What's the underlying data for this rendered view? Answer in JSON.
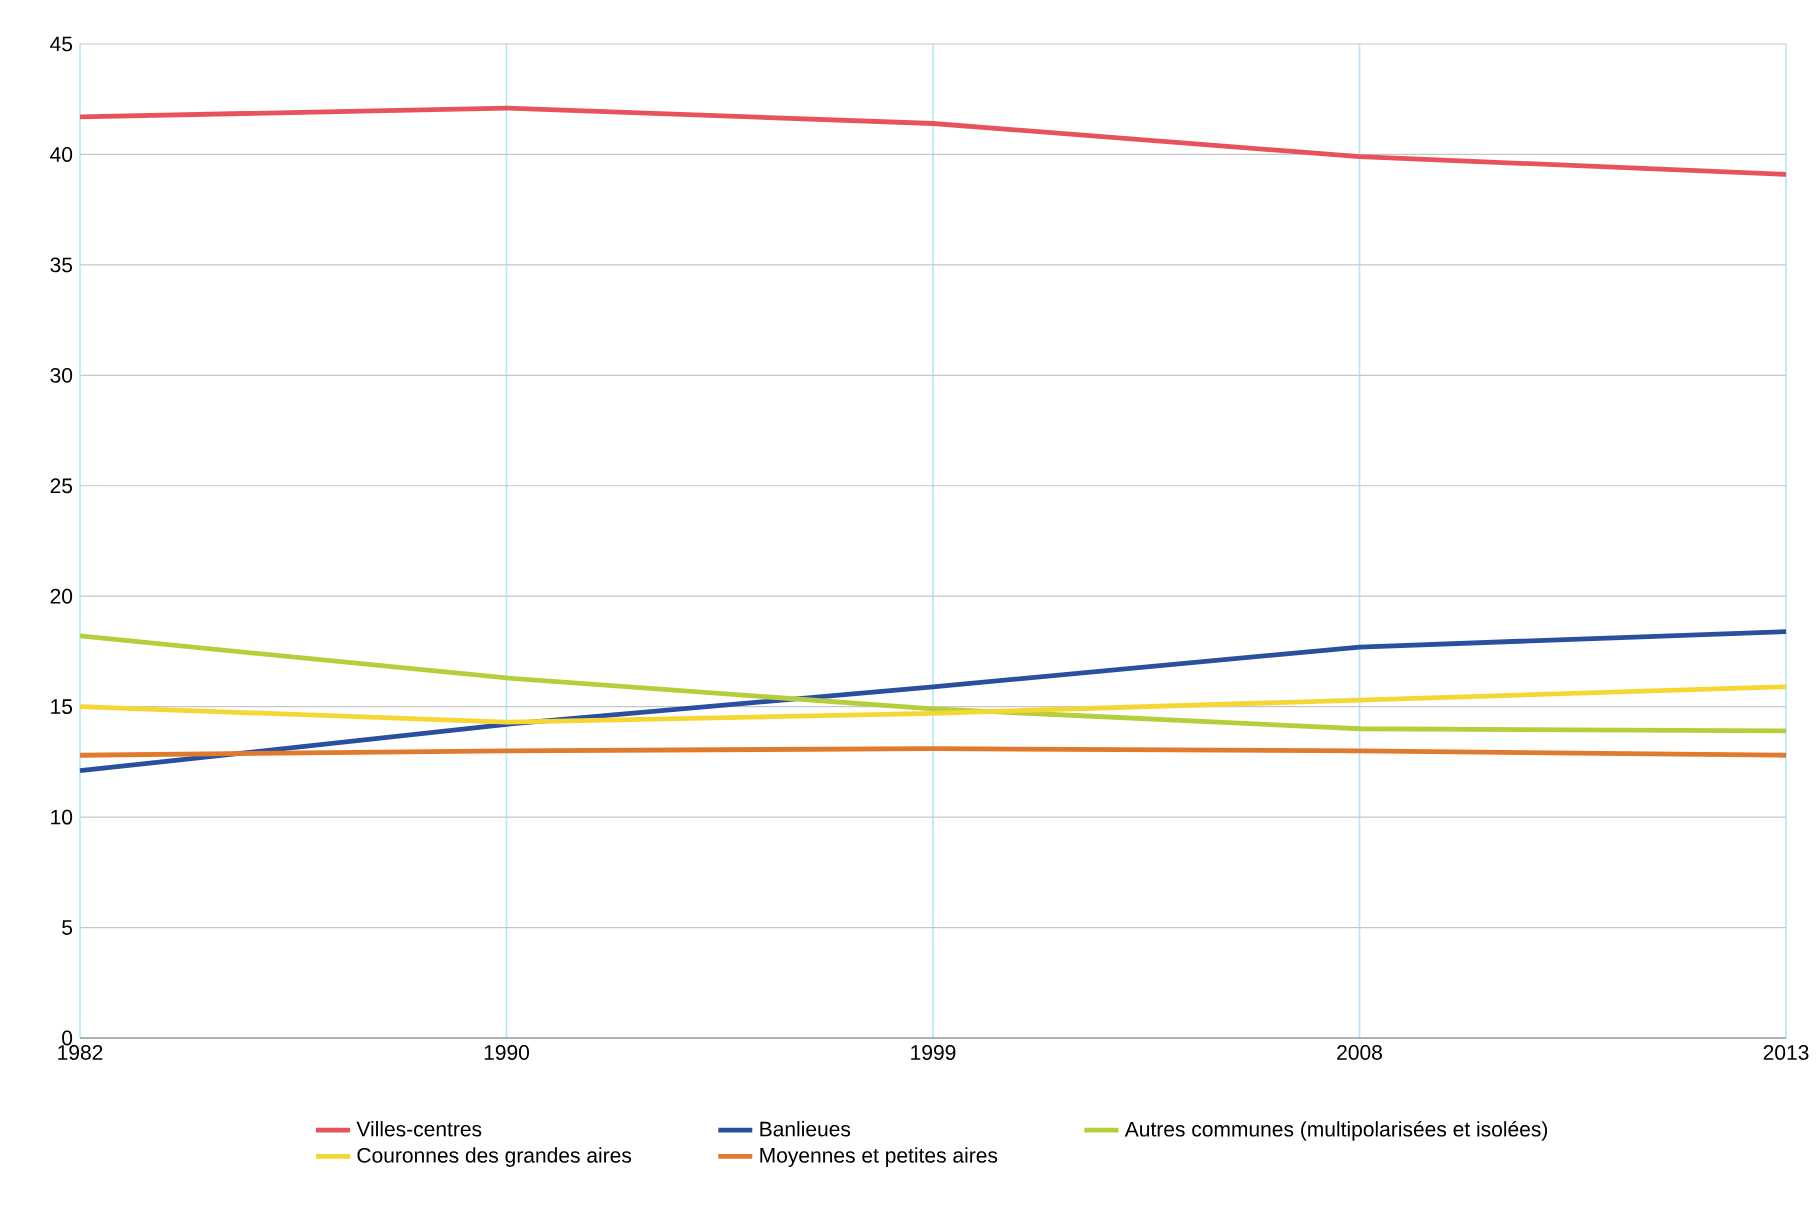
{
  "chart_data": {
    "type": "line",
    "categories": [
      "1982",
      "1990",
      "1999",
      "2008",
      "2013"
    ],
    "ylim": [
      0,
      45
    ],
    "yticks": [
      0,
      5,
      10,
      15,
      20,
      25,
      30,
      35,
      40,
      45
    ],
    "grid": true,
    "legend": "bottom",
    "marker": "none",
    "series": [
      {
        "name": "Villes-centres",
        "color": "#e8525a",
        "values": [
          41.7,
          42.1,
          41.4,
          39.9,
          39.1
        ]
      },
      {
        "name": "Banlieues",
        "color": "#2a4f9e",
        "values": [
          12.1,
          14.2,
          15.9,
          17.7,
          18.4
        ]
      },
      {
        "name": "Autres communes (multipolarisées et isolées)",
        "color": "#b5cf3c",
        "values": [
          18.2,
          16.3,
          14.9,
          14.0,
          13.9
        ]
      },
      {
        "name": "Couronnes des grandes aires",
        "color": "#f6d632",
        "values": [
          15.0,
          14.3,
          14.7,
          15.3,
          15.9
        ]
      },
      {
        "name": "Moyennes et petites aires",
        "color": "#e07a2c",
        "values": [
          12.8,
          13.0,
          13.1,
          13.0,
          12.8
        ]
      }
    ]
  }
}
